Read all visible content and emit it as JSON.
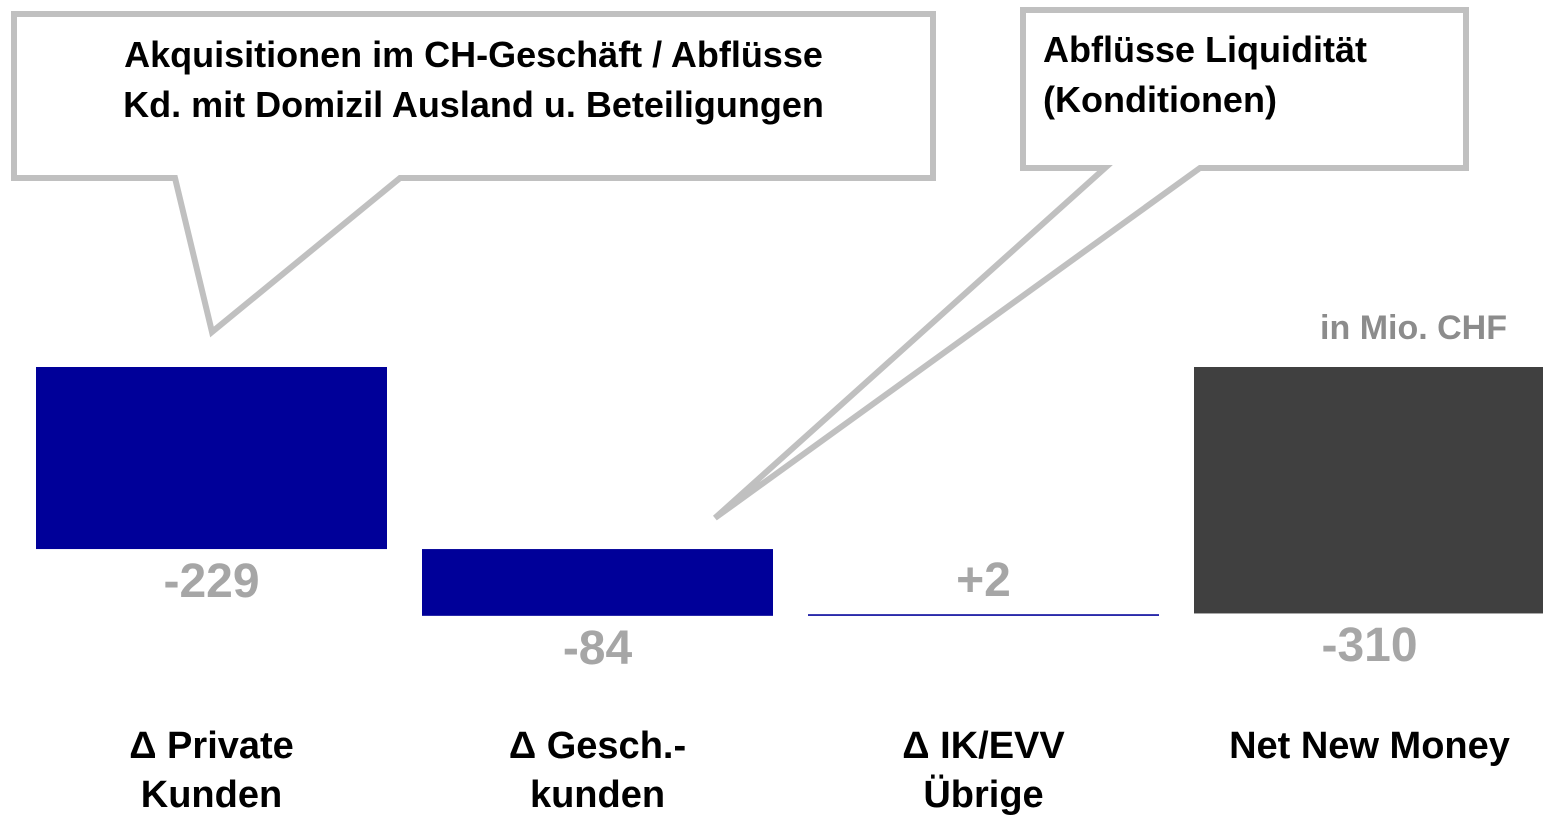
{
  "chart_data": {
    "type": "waterfall",
    "categories": [
      "Δ Private\nKunden",
      "Δ Gesch.-\nkunden",
      "Δ IK/EVV\nÜbrige",
      "Net New Money"
    ],
    "values": [
      -229,
      -84,
      2,
      -310
    ],
    "value_labels": [
      "-229",
      "-84",
      "+2",
      "-310"
    ],
    "total": [
      false,
      false,
      false,
      true
    ],
    "colors": [
      "#000099",
      "#000099",
      "#000099",
      "#404040"
    ],
    "unit_label": "in Mio. CHF",
    "annotations": [
      "Akquisitionen im CH-Geschäft / Abflüsse\nKd. mit Domizil Ausland u. Beteiligungen",
      "Abflüsse Liquidität\n(Konditionen)"
    ]
  }
}
